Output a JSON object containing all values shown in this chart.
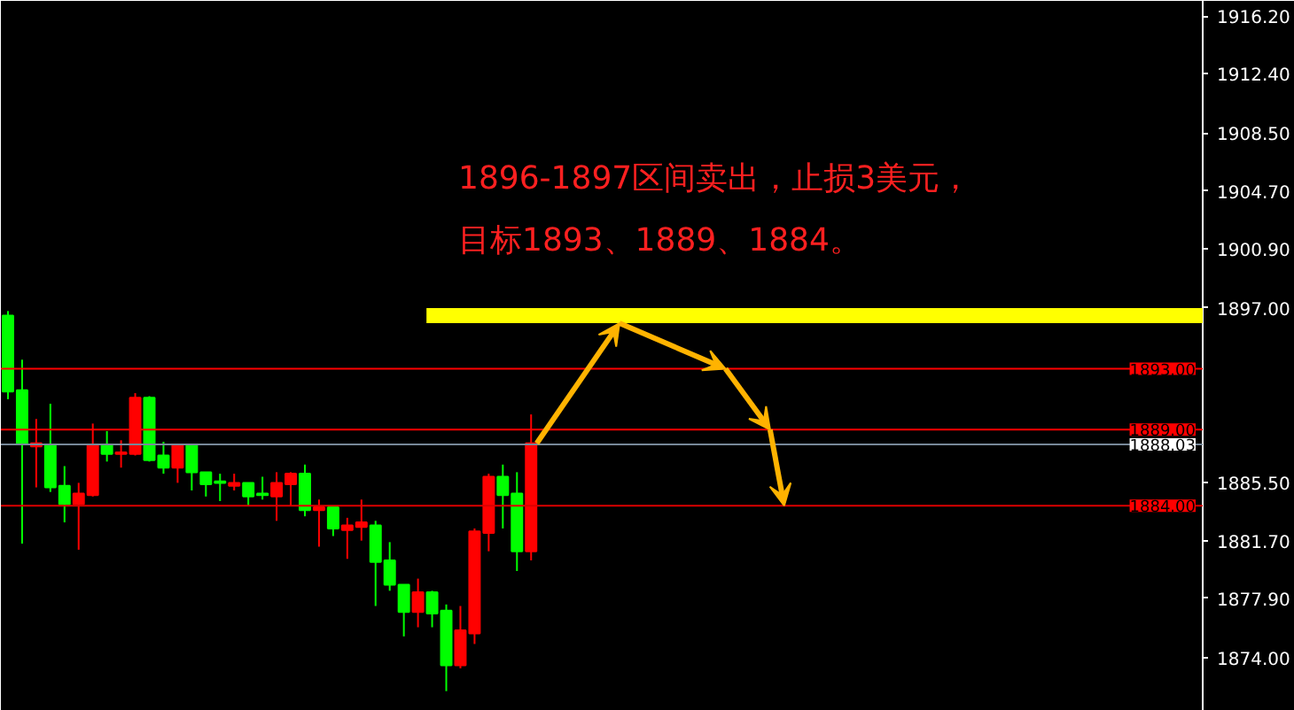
{
  "chart_data": {
    "type": "candlestick",
    "annotations": [
      "1896-1897区间卖出，止损3美元，",
      "目标1893、1889、1884。"
    ],
    "categories": [
      null,
      null,
      null,
      null,
      null,
      null,
      null,
      null,
      null,
      null,
      null,
      null,
      null,
      null,
      null,
      null,
      null,
      null,
      null,
      null,
      null,
      null,
      null,
      null,
      null,
      null,
      null,
      null,
      null,
      null,
      null,
      null,
      null,
      null,
      null,
      null,
      null,
      null,
      null,
      null,
      null,
      null,
      null,
      null,
      null,
      null,
      null,
      null,
      null,
      null,
      null,
      null,
      null,
      null,
      null,
      null,
      null,
      null,
      null,
      null,
      null,
      null,
      null,
      null,
      null,
      null,
      null,
      null,
      null,
      null,
      null,
      null,
      null,
      null,
      null,
      null,
      null,
      null,
      null,
      null,
      null,
      null,
      null,
      null,
      null
    ],
    "ohlc": [
      [
        1896.5,
        1896.8,
        1891.0,
        1891.5
      ],
      [
        1891.6,
        1893.6,
        1881.5,
        1888.1
      ],
      [
        1887.9,
        1889.7,
        1885.2,
        1888.1
      ],
      [
        1888.0,
        1890.7,
        1884.9,
        1885.2
      ],
      [
        1885.3,
        1886.6,
        1882.9,
        1884.1
      ],
      [
        1884.1,
        1885.5,
        1881.1,
        1884.8
      ],
      [
        1884.7,
        1889.4,
        1884.6,
        1888.0
      ],
      [
        1888.0,
        1888.9,
        1886.9,
        1887.4
      ],
      [
        1887.4,
        1888.3,
        1886.5,
        1887.5
      ],
      [
        1887.4,
        1891.4,
        1887.3,
        1891.1
      ],
      [
        1891.1,
        1891.2,
        1886.9,
        1887.0
      ],
      [
        1887.3,
        1888.2,
        1886.1,
        1886.5
      ],
      [
        1886.5,
        1888.0,
        1885.5,
        1888.0
      ],
      [
        1888.0,
        1888.0,
        1885.0,
        1886.2
      ],
      [
        1886.2,
        1886.2,
        1884.6,
        1885.4
      ],
      [
        1885.6,
        1886.1,
        1884.3,
        1885.5
      ],
      [
        1885.3,
        1886.1,
        1885.0,
        1885.5
      ],
      [
        1885.5,
        1885.5,
        1884.0,
        1884.6
      ],
      [
        1884.8,
        1885.9,
        1884.4,
        1884.7
      ],
      [
        1884.6,
        1886.2,
        1883.0,
        1885.5
      ],
      [
        1885.4,
        1886.2,
        1884.0,
        1886.1
      ],
      [
        1886.1,
        1886.7,
        1883.3,
        1883.7
      ],
      [
        1883.7,
        1884.4,
        1881.3,
        1883.9
      ],
      [
        1883.9,
        1883.9,
        1882.0,
        1882.5
      ],
      [
        1882.4,
        1883.2,
        1880.5,
        1882.7
      ],
      [
        1882.6,
        1884.4,
        1881.7,
        1882.9
      ],
      [
        1882.7,
        1883.0,
        1877.4,
        1880.3
      ],
      [
        1880.4,
        1881.6,
        1878.4,
        1878.8
      ],
      [
        1878.8,
        1878.8,
        1875.4,
        1877.0
      ],
      [
        1877.0,
        1879.2,
        1876.0,
        1878.3
      ],
      [
        1878.3,
        1878.4,
        1876.0,
        1876.9
      ],
      [
        1877.1,
        1877.5,
        1871.8,
        1873.5
      ],
      [
        1873.5,
        1877.4,
        1873.3,
        1875.8
      ],
      [
        1875.6,
        1882.5,
        1874.9,
        1882.3
      ],
      [
        1882.2,
        1886.1,
        1881.0,
        1885.9
      ],
      [
        1885.9,
        1886.7,
        1882.5,
        1884.7
      ],
      [
        1884.8,
        1886.2,
        1879.7,
        1881.0
      ],
      [
        1881.0,
        1890.0,
        1880.4,
        1888.1
      ],
      null,
      null,
      null,
      null,
      null,
      null,
      null,
      null,
      null,
      null,
      null,
      null,
      null,
      null,
      null,
      null,
      null,
      null,
      null,
      null,
      null,
      null,
      null,
      null,
      null,
      null,
      null,
      null,
      null,
      null,
      null,
      null,
      null,
      null,
      null,
      null,
      null,
      null,
      null,
      null,
      null,
      null,
      null,
      null,
      null,
      null,
      null
    ],
    "colors": [
      "#00ff00",
      "#00ff00",
      "#ff0000",
      "#00ff00",
      "#00ff00",
      "#ff0000",
      "#ff0000",
      "#00ff00",
      "#ff0000",
      "#ff0000",
      "#00ff00",
      "#00ff00",
      "#ff0000",
      "#00ff00",
      "#00ff00",
      "#00ff00",
      "#ff0000",
      "#00ff00",
      "#00ff00",
      "#ff0000",
      "#ff0000",
      "#00ff00",
      "#ff0000",
      "#00ff00",
      "#ff0000",
      "#ff0000",
      "#00ff00",
      "#00ff00",
      "#00ff00",
      "#ff0000",
      "#00ff00",
      "#00ff00",
      "#ff0000",
      "#ff0000",
      "#ff0000",
      "#00ff00",
      "#00ff00",
      "#ff0000",
      null,
      null,
      null,
      null,
      null,
      null,
      null,
      null,
      null,
      null,
      null,
      null,
      null,
      null,
      null,
      null,
      null,
      null,
      null,
      null,
      null,
      null,
      null,
      null,
      null,
      null,
      null,
      null,
      null,
      null,
      null,
      null,
      null,
      null,
      null,
      null,
      null,
      null,
      null,
      null,
      null,
      null,
      null,
      null,
      null,
      null,
      null
    ],
    "ylim": [
      1870.5,
      1917.2
    ],
    "yticks": [
      {
        "value": 1916.2,
        "label": "1916.20"
      },
      {
        "value": 1912.4,
        "label": "1912.40"
      },
      {
        "value": 1908.5,
        "label": "1908.50"
      },
      {
        "value": 1904.7,
        "label": "1904.70"
      },
      {
        "value": 1900.9,
        "label": "1900.90"
      },
      {
        "value": 1897,
        "label": "1897.00"
      },
      {
        "value": 1885.5,
        "label": "1885.50"
      },
      {
        "value": 1881.7,
        "label": "1881.70"
      },
      {
        "value": 1877.9,
        "label": "1877.90"
      },
      {
        "value": 1874,
        "label": "1874.00"
      }
    ],
    "tick_labels": "y",
    "grid": false,
    "bands": [
      {
        "axis": "y",
        "from": 1896,
        "to": 1897,
        "color": "#ffff00"
      }
    ],
    "ref_lines": [
      {
        "axis": "y",
        "value": 1893,
        "label": "1893.00",
        "color": "#ff0000"
      },
      {
        "axis": "y",
        "value": 1889,
        "label": "1889.00",
        "color": "#ff0000"
      },
      {
        "axis": "y",
        "value": 1888.03,
        "label": "1888.03",
        "color": "#778899"
      },
      {
        "axis": "y",
        "value": 1884,
        "label": "1884.00",
        "color": "#dd0000"
      }
    ]
  }
}
